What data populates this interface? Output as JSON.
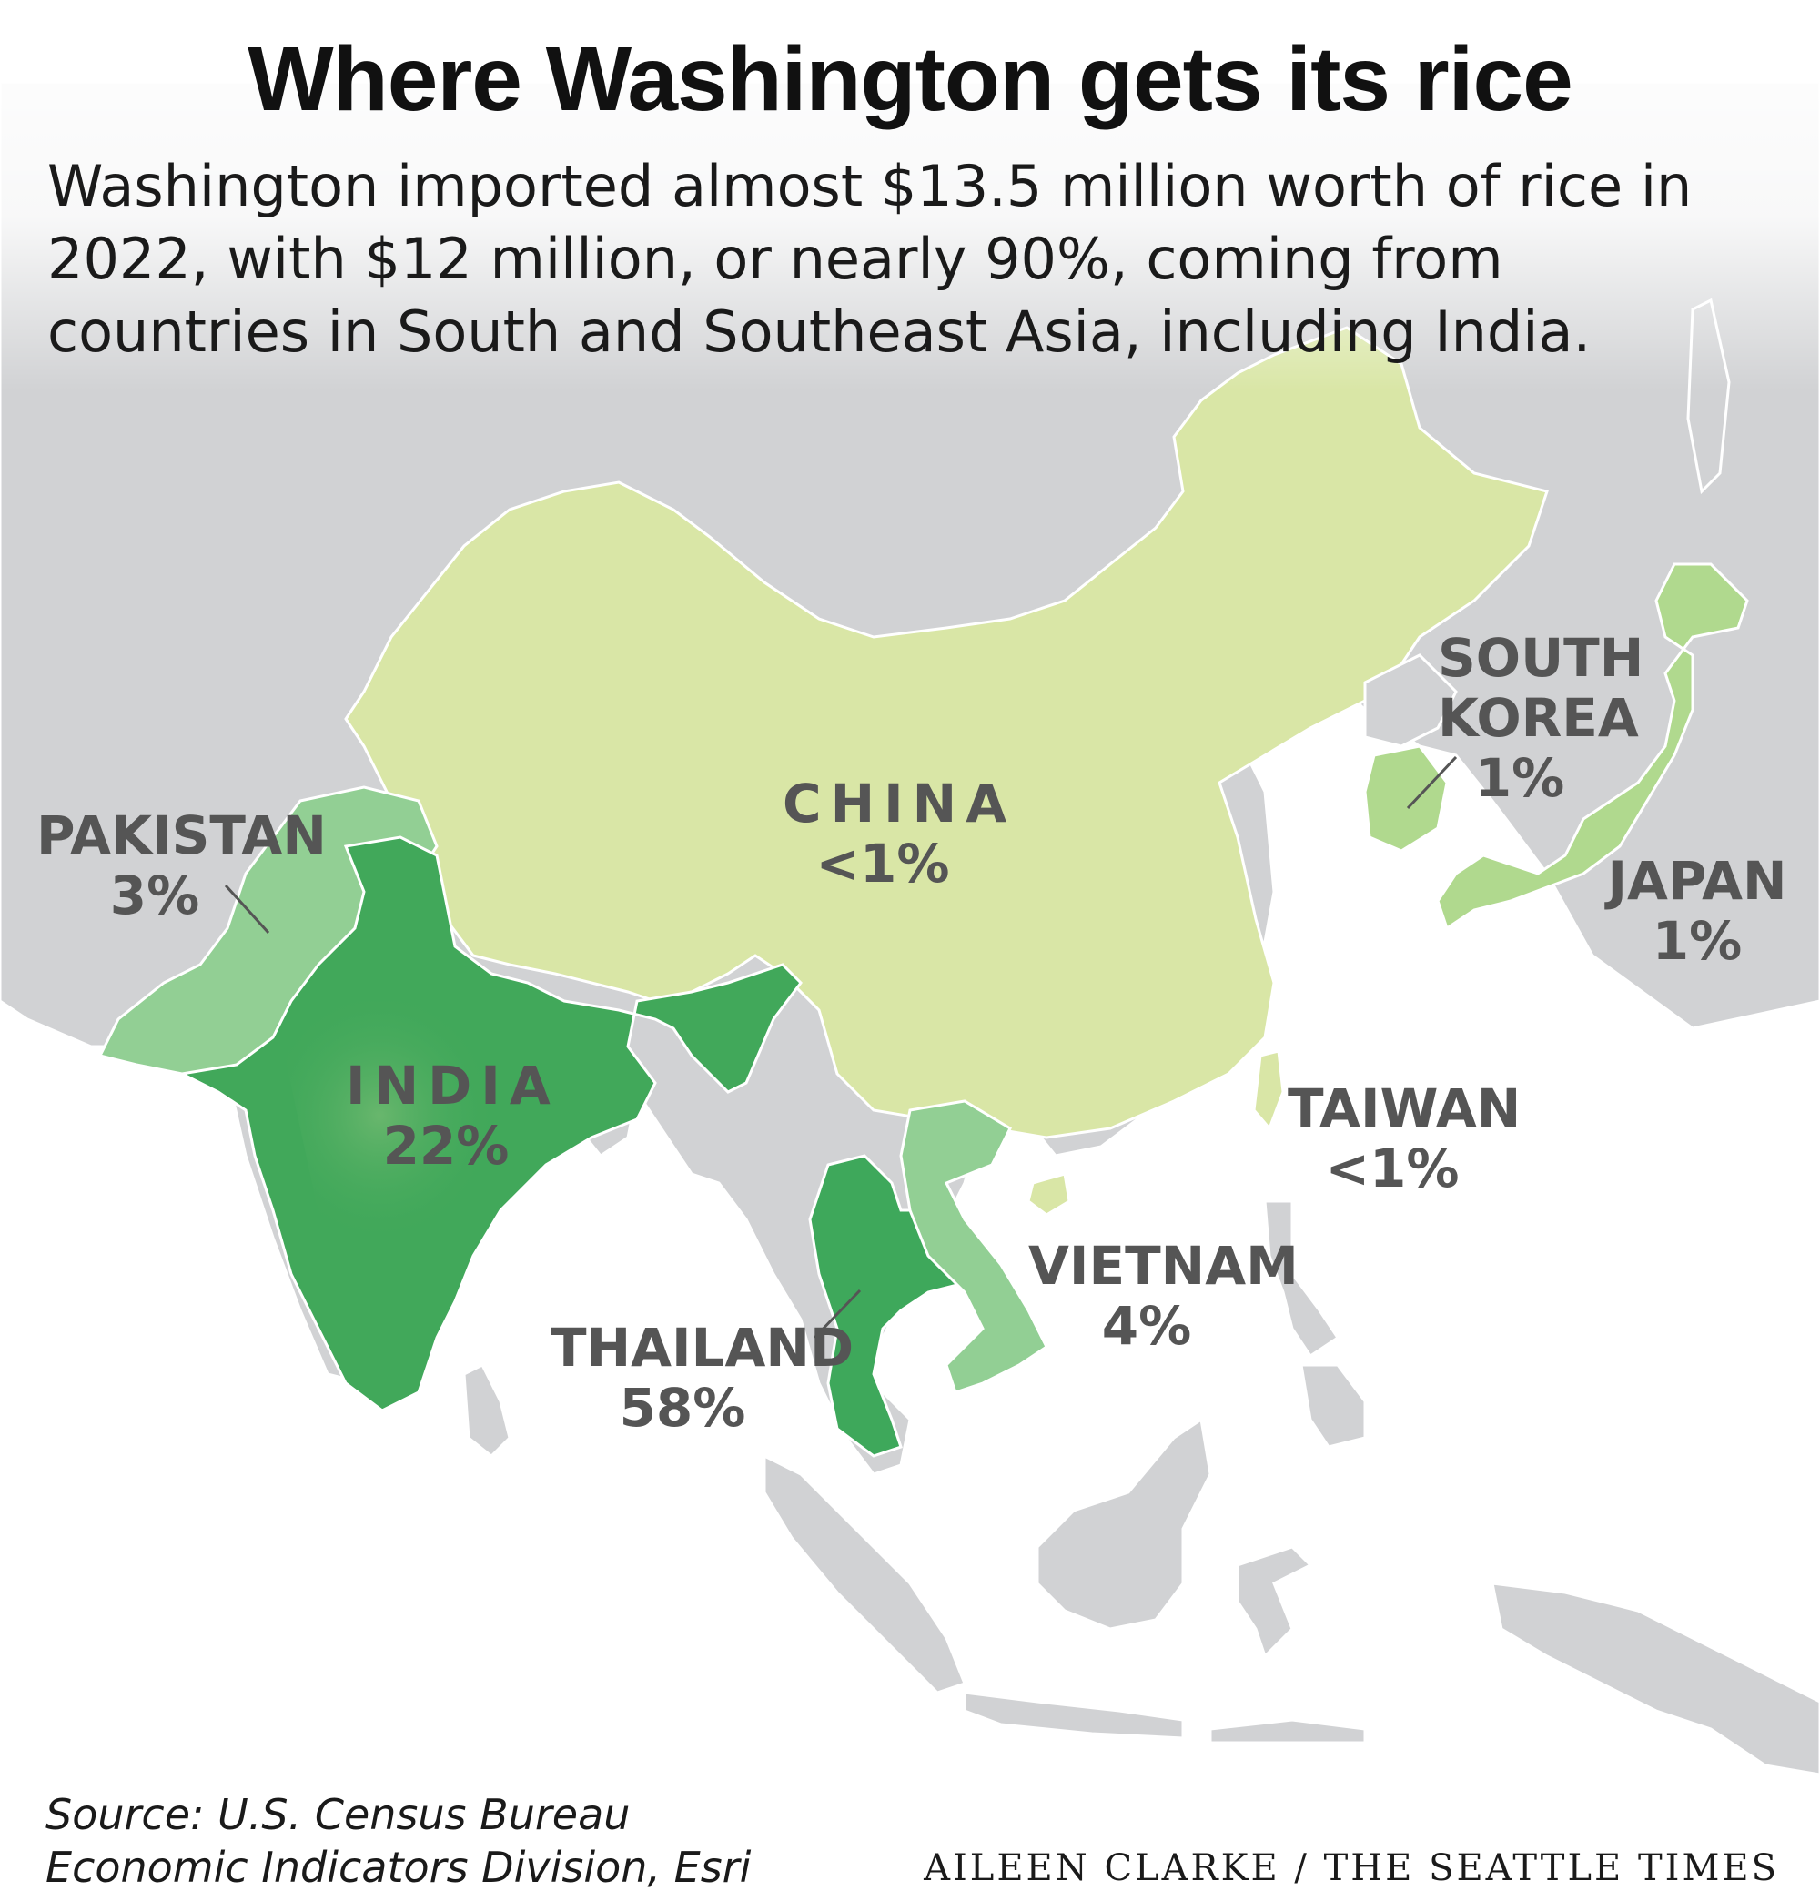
{
  "title": "Where Washington gets its rice",
  "subtitle": "Washington imported almost $13.5 million worth of rice in 2022, with $12 million, or nearly 90%, coming from countries in South and Southeast Asia, including India.",
  "countries": [
    {
      "name": "CHINA",
      "share": "<1%",
      "color": "#d9e6a6"
    },
    {
      "name": "INDIA",
      "share": "22%",
      "color": "#41a85a"
    },
    {
      "name": "PAKISTAN",
      "share": "3%",
      "color": "#92cf94"
    },
    {
      "name": "THAILAND",
      "share": "58%",
      "color": "#3ea85b"
    },
    {
      "name": "VIETNAM",
      "share": "4%",
      "color": "#92cf94"
    },
    {
      "name": "SOUTH KOREA",
      "share": "1%",
      "color": "#b0d98e"
    },
    {
      "name": "JAPAN",
      "share": "1%",
      "color": "#b0d98e"
    },
    {
      "name": "TAIWAN",
      "share": "<1%",
      "color": "#d9e6a6"
    }
  ],
  "colors": {
    "land": "#d1d2d4",
    "ocean": "#ffffff",
    "border": "#ffffff",
    "label": "#555555"
  },
  "source": {
    "line1": "Source: U.S. Census Bureau",
    "line2": "Economic Indicators Division, Esri"
  },
  "credit": "AILEEN CLARKE / THE SEATTLE TIMES"
}
